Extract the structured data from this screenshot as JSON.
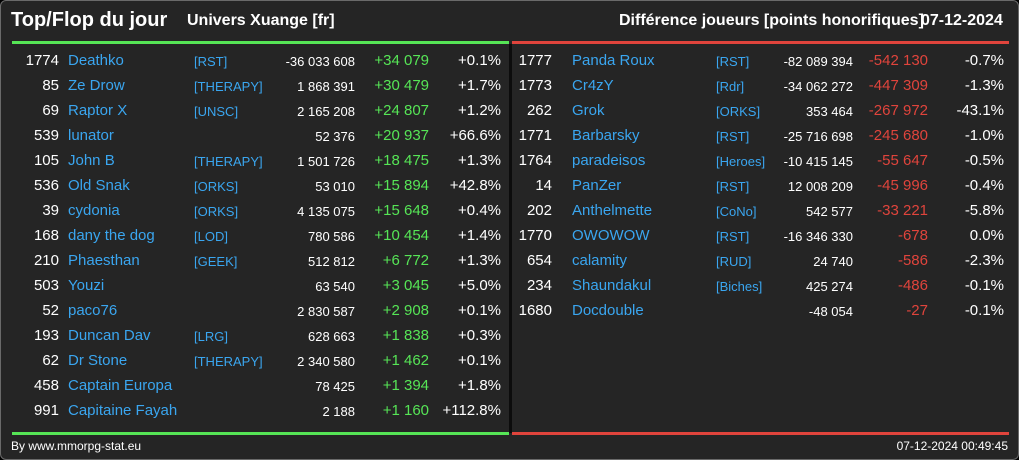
{
  "header": {
    "title": "Top/Flop du jour",
    "universe": "Univers Xuange [fr]",
    "metric": "Différence joueurs [points honorifiques]",
    "date": "07-12-2024"
  },
  "colors": {
    "gain": "#56e556",
    "loss": "#e0443c",
    "link": "#3aa6f0",
    "background": "#252525"
  },
  "top": [
    {
      "rank": "1774",
      "name": "Deathko",
      "guild": "[RST]",
      "total": "-36 033 608",
      "diff": "+34 079",
      "pct": "+0.1%"
    },
    {
      "rank": "85",
      "name": "Ze Drow",
      "guild": "[THERAPY]",
      "total": "1 868 391",
      "diff": "+30 479",
      "pct": "+1.7%"
    },
    {
      "rank": "69",
      "name": "Raptor X",
      "guild": "[UNSC]",
      "total": "2 165 208",
      "diff": "+24 807",
      "pct": "+1.2%"
    },
    {
      "rank": "539",
      "name": "lunator",
      "guild": "",
      "total": "52 376",
      "diff": "+20 937",
      "pct": "+66.6%"
    },
    {
      "rank": "105",
      "name": "John B",
      "guild": "[THERAPY]",
      "total": "1 501 726",
      "diff": "+18 475",
      "pct": "+1.3%"
    },
    {
      "rank": "536",
      "name": "Old Snak",
      "guild": "[ORKS]",
      "total": "53 010",
      "diff": "+15 894",
      "pct": "+42.8%"
    },
    {
      "rank": "39",
      "name": "cydonia",
      "guild": "[ORKS]",
      "total": "4 135 075",
      "diff": "+15 648",
      "pct": "+0.4%"
    },
    {
      "rank": "168",
      "name": "dany the dog",
      "guild": "[LOD]",
      "total": "780 586",
      "diff": "+10 454",
      "pct": "+1.4%"
    },
    {
      "rank": "210",
      "name": "Phaesthan",
      "guild": "[GEEK]",
      "total": "512 812",
      "diff": "+6 772",
      "pct": "+1.3%"
    },
    {
      "rank": "503",
      "name": "Youzi",
      "guild": "",
      "total": "63 540",
      "diff": "+3 045",
      "pct": "+5.0%"
    },
    {
      "rank": "52",
      "name": "paco76",
      "guild": "",
      "total": "2 830 587",
      "diff": "+2 908",
      "pct": "+0.1%"
    },
    {
      "rank": "193",
      "name": "Duncan Dav",
      "guild": "[LRG]",
      "total": "628 663",
      "diff": "+1 838",
      "pct": "+0.3%"
    },
    {
      "rank": "62",
      "name": "Dr Stone",
      "guild": "[THERAPY]",
      "total": "2 340 580",
      "diff": "+1 462",
      "pct": "+0.1%"
    },
    {
      "rank": "458",
      "name": "Captain Europa",
      "guild": "",
      "total": "78 425",
      "diff": "+1 394",
      "pct": "+1.8%"
    },
    {
      "rank": "991",
      "name": "Capitaine Fayah",
      "guild": "",
      "total": "2 188",
      "diff": "+1 160",
      "pct": "+112.8%"
    }
  ],
  "flop": [
    {
      "rank": "1777",
      "name": "Panda Roux",
      "guild": "[RST]",
      "total": "-82 089 394",
      "diff": "-542 130",
      "pct": "-0.7%"
    },
    {
      "rank": "1773",
      "name": "Cr4zY",
      "guild": "[Rdr]",
      "total": "-34 062 272",
      "diff": "-447 309",
      "pct": "-1.3%"
    },
    {
      "rank": "262",
      "name": "Grok",
      "guild": "[ORKS]",
      "total": "353 464",
      "diff": "-267 972",
      "pct": "-43.1%"
    },
    {
      "rank": "1771",
      "name": "Barbarsky",
      "guild": "[RST]",
      "total": "-25 716 698",
      "diff": "-245 680",
      "pct": "-1.0%"
    },
    {
      "rank": "1764",
      "name": "paradeisos",
      "guild": "[Heroes]",
      "total": "-10 415 145",
      "diff": "-55 647",
      "pct": "-0.5%"
    },
    {
      "rank": "14",
      "name": "PanZer",
      "guild": "[RST]",
      "total": "12 008 209",
      "diff": "-45 996",
      "pct": "-0.4%"
    },
    {
      "rank": "202",
      "name": "Anthelmette",
      "guild": "[CoNo]",
      "total": "542 577",
      "diff": "-33 221",
      "pct": "-5.8%"
    },
    {
      "rank": "1770",
      "name": "OWOWOW",
      "guild": "[RST]",
      "total": "-16 346 330",
      "diff": "-678",
      "pct": "0.0%"
    },
    {
      "rank": "654",
      "name": "calamity",
      "guild": "[RUD]",
      "total": "24 740",
      "diff": "-586",
      "pct": "-2.3%"
    },
    {
      "rank": "234",
      "name": "Shaundakul",
      "guild": "[Biches]",
      "total": "425 274",
      "diff": "-486",
      "pct": "-0.1%"
    },
    {
      "rank": "1680",
      "name": "Docdouble",
      "guild": "",
      "total": "-48 054",
      "diff": "-27",
      "pct": "-0.1%"
    }
  ],
  "footer": {
    "credit": "By www.mmorpg-stat.eu",
    "timestamp": "07-12-2024 00:49:45"
  }
}
